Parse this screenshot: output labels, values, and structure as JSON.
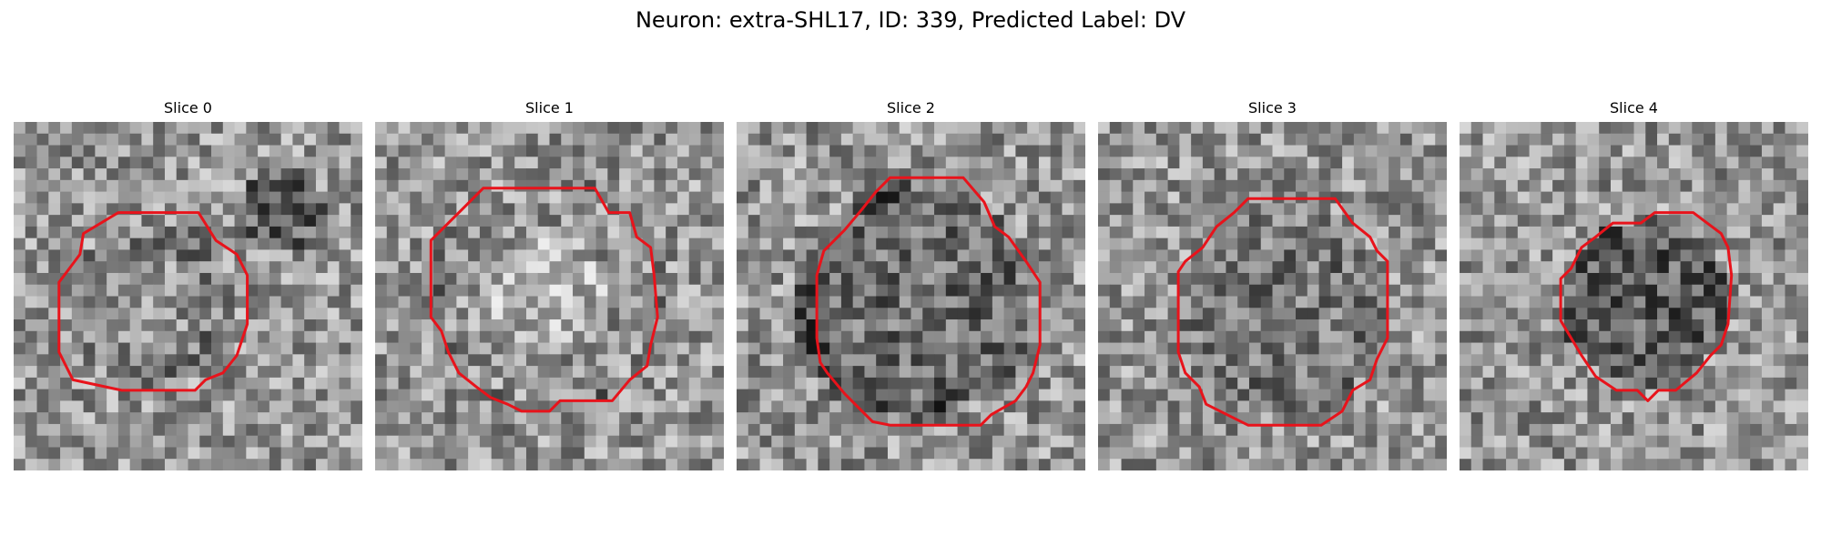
{
  "figure": {
    "title": "Neuron: extra-SHL17, ID: 339, Predicted Label: DV"
  },
  "colors": {
    "contour": "#e8131b",
    "background": "#ffffff",
    "text": "#000000"
  },
  "slices": [
    {
      "title": "Slice 0",
      "contour_outline": [
        [
          0.3,
          0.26
        ],
        [
          0.53,
          0.26
        ],
        [
          0.58,
          0.34
        ],
        [
          0.64,
          0.38
        ],
        [
          0.67,
          0.44
        ],
        [
          0.67,
          0.58
        ],
        [
          0.64,
          0.67
        ],
        [
          0.6,
          0.72
        ],
        [
          0.55,
          0.74
        ],
        [
          0.52,
          0.77
        ],
        [
          0.31,
          0.77
        ],
        [
          0.17,
          0.74
        ],
        [
          0.15,
          0.7
        ],
        [
          0.13,
          0.66
        ],
        [
          0.13,
          0.46
        ],
        [
          0.16,
          0.42
        ],
        [
          0.19,
          0.38
        ],
        [
          0.2,
          0.32
        ],
        [
          0.25,
          0.29
        ]
      ]
    },
    {
      "title": "Slice 1",
      "contour_outline": [
        [
          0.31,
          0.19
        ],
        [
          0.63,
          0.19
        ],
        [
          0.67,
          0.26
        ],
        [
          0.73,
          0.26
        ],
        [
          0.75,
          0.33
        ],
        [
          0.79,
          0.36
        ],
        [
          0.8,
          0.44
        ],
        [
          0.81,
          0.56
        ],
        [
          0.79,
          0.64
        ],
        [
          0.78,
          0.7
        ],
        [
          0.73,
          0.74
        ],
        [
          0.68,
          0.8
        ],
        [
          0.63,
          0.8
        ],
        [
          0.53,
          0.8
        ],
        [
          0.5,
          0.83
        ],
        [
          0.42,
          0.83
        ],
        [
          0.38,
          0.81
        ],
        [
          0.33,
          0.79
        ],
        [
          0.29,
          0.76
        ],
        [
          0.24,
          0.72
        ],
        [
          0.21,
          0.66
        ],
        [
          0.19,
          0.6
        ],
        [
          0.16,
          0.56
        ],
        [
          0.16,
          0.34
        ],
        [
          0.19,
          0.31
        ],
        [
          0.25,
          0.25
        ]
      ]
    },
    {
      "title": "Slice 2",
      "contour_outline": [
        [
          0.44,
          0.16
        ],
        [
          0.65,
          0.16
        ],
        [
          0.71,
          0.23
        ],
        [
          0.74,
          0.3
        ],
        [
          0.78,
          0.33
        ],
        [
          0.83,
          0.4
        ],
        [
          0.87,
          0.46
        ],
        [
          0.87,
          0.64
        ],
        [
          0.85,
          0.72
        ],
        [
          0.83,
          0.76
        ],
        [
          0.8,
          0.8
        ],
        [
          0.73,
          0.84
        ],
        [
          0.7,
          0.87
        ],
        [
          0.63,
          0.87
        ],
        [
          0.56,
          0.87
        ],
        [
          0.44,
          0.87
        ],
        [
          0.39,
          0.86
        ],
        [
          0.35,
          0.82
        ],
        [
          0.31,
          0.78
        ],
        [
          0.26,
          0.72
        ],
        [
          0.24,
          0.69
        ],
        [
          0.23,
          0.62
        ],
        [
          0.23,
          0.44
        ],
        [
          0.25,
          0.37
        ],
        [
          0.31,
          0.31
        ],
        [
          0.36,
          0.25
        ],
        [
          0.4,
          0.2
        ]
      ]
    },
    {
      "title": "Slice 3",
      "contour_outline": [
        [
          0.43,
          0.22
        ],
        [
          0.68,
          0.22
        ],
        [
          0.73,
          0.29
        ],
        [
          0.78,
          0.33
        ],
        [
          0.8,
          0.37
        ],
        [
          0.83,
          0.4
        ],
        [
          0.83,
          0.62
        ],
        [
          0.8,
          0.68
        ],
        [
          0.78,
          0.74
        ],
        [
          0.73,
          0.77
        ],
        [
          0.7,
          0.83
        ],
        [
          0.64,
          0.87
        ],
        [
          0.43,
          0.87
        ],
        [
          0.37,
          0.84
        ],
        [
          0.31,
          0.81
        ],
        [
          0.29,
          0.76
        ],
        [
          0.25,
          0.72
        ],
        [
          0.23,
          0.66
        ],
        [
          0.23,
          0.43
        ],
        [
          0.25,
          0.4
        ],
        [
          0.3,
          0.36
        ],
        [
          0.34,
          0.3
        ],
        [
          0.39,
          0.26
        ]
      ]
    },
    {
      "title": "Slice 4",
      "contour_outline": [
        [
          0.56,
          0.26
        ],
        [
          0.67,
          0.26
        ],
        [
          0.71,
          0.29
        ],
        [
          0.75,
          0.32
        ],
        [
          0.77,
          0.36
        ],
        [
          0.78,
          0.44
        ],
        [
          0.77,
          0.58
        ],
        [
          0.75,
          0.64
        ],
        [
          0.72,
          0.67
        ],
        [
          0.68,
          0.72
        ],
        [
          0.62,
          0.77
        ],
        [
          0.57,
          0.77
        ],
        [
          0.54,
          0.8
        ],
        [
          0.51,
          0.77
        ],
        [
          0.45,
          0.77
        ],
        [
          0.39,
          0.73
        ],
        [
          0.35,
          0.67
        ],
        [
          0.32,
          0.62
        ],
        [
          0.29,
          0.57
        ],
        [
          0.29,
          0.45
        ],
        [
          0.32,
          0.42
        ],
        [
          0.35,
          0.36
        ],
        [
          0.39,
          0.33
        ],
        [
          0.44,
          0.29
        ],
        [
          0.52,
          0.29
        ]
      ]
    }
  ]
}
